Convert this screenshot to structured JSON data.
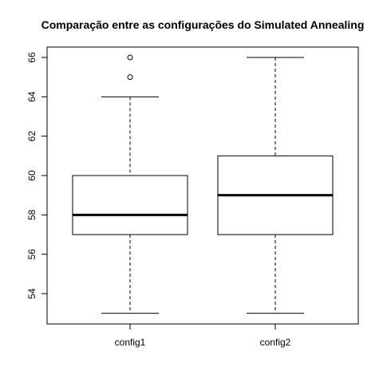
{
  "chart_data": {
    "type": "boxplot",
    "title": "Comparação entre as configurações do Simulated Annealing",
    "xlabel": "",
    "ylabel": "",
    "ylim": [
      52.5,
      66.6
    ],
    "yticks": [
      54,
      56,
      58,
      60,
      62,
      64,
      66
    ],
    "grid": false,
    "categories": [
      "config1",
      "config2"
    ],
    "boxes": [
      {
        "name": "config1",
        "whisker_low": 53,
        "q1": 57,
        "median": 58,
        "q3": 60,
        "whisker_high": 64,
        "outliers": [
          65,
          66
        ]
      },
      {
        "name": "config2",
        "whisker_low": 53,
        "q1": 57,
        "median": 59,
        "q3": 61,
        "whisker_high": 66,
        "outliers": []
      }
    ]
  }
}
